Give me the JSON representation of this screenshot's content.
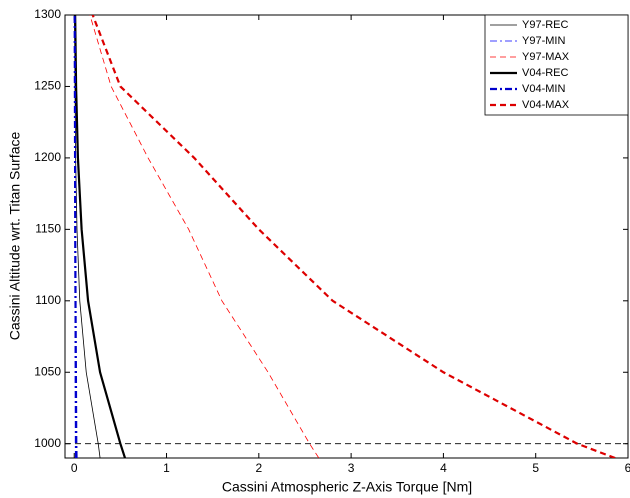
{
  "chart_data": {
    "type": "line",
    "xlabel": "Cassini Atmospheric Z-Axis Torque [Nm]",
    "ylabel": "Cassini Altitude wrt. Titan Surface",
    "altitudes": [
      990,
      1000,
      1050,
      1100,
      1150,
      1200,
      1250,
      1300
    ],
    "series": [
      {
        "name": "Y97-REC",
        "color": "#000000",
        "style": "solid",
        "width": 0.8,
        "values": [
          0.28,
          0.26,
          0.13,
          0.06,
          0.03,
          0.015,
          0.008,
          0.004
        ]
      },
      {
        "name": "Y97-MIN",
        "color": "#0000ff",
        "style": "dashdot",
        "width": 0.8,
        "values": [
          0.012,
          0.011,
          0.009,
          0.007,
          0.006,
          0.005,
          0.004,
          0.003
        ]
      },
      {
        "name": "Y97-MAX",
        "color": "#ff0000",
        "style": "dashed",
        "width": 0.8,
        "values": [
          2.65,
          2.55,
          2.1,
          1.6,
          1.24,
          0.8,
          0.4,
          0.17
        ]
      },
      {
        "name": "V04-REC",
        "color": "#000000",
        "style": "solid",
        "width": 2.2,
        "values": [
          0.55,
          0.5,
          0.28,
          0.15,
          0.08,
          0.04,
          0.02,
          0.01
        ]
      },
      {
        "name": "V04-MIN",
        "color": "#0000cc",
        "style": "dashdot",
        "width": 2.2,
        "values": [
          0.025,
          0.022,
          0.018,
          0.014,
          0.011,
          0.009,
          0.007,
          0.005
        ]
      },
      {
        "name": "V04-MAX",
        "color": "#dd0000",
        "style": "dashed",
        "width": 2.2,
        "values": [
          5.86,
          5.45,
          4.0,
          2.8,
          2.0,
          1.3,
          0.5,
          0.2
        ]
      }
    ],
    "hline": 1000,
    "xlim": [
      -0.1,
      6
    ],
    "ylim": [
      990,
      1300
    ],
    "xticks": [
      0,
      1,
      2,
      3,
      4,
      5,
      6
    ],
    "yticks": [
      1000,
      1050,
      1100,
      1150,
      1200,
      1250,
      1300
    ],
    "legend": "upper right"
  }
}
